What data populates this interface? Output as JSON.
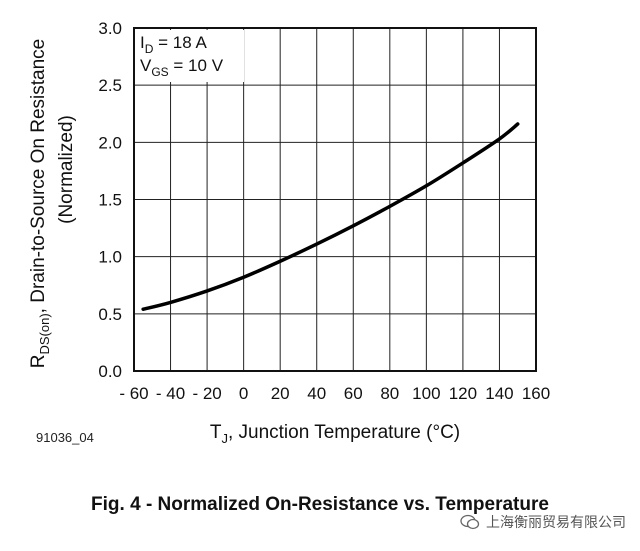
{
  "figure_id": "91036_04",
  "caption": "Fig. 4 - Normalized On-Resistance vs. Temperature",
  "watermark": "上海衡丽贸易有限公司",
  "annotation": {
    "id_label": "I",
    "id_sub": "D",
    "id_value": " = 18 A",
    "vgs_label": "V",
    "vgs_sub": "GS",
    "vgs_value": " = 10 V"
  },
  "chart_data": {
    "type": "line",
    "title": "",
    "xlabel_main": "T",
    "xlabel_sub": "J",
    "xlabel_rest": ", Junction Temperature (°C)",
    "ylabel_line1_main": "R",
    "ylabel_line1_sub": "DS(on)",
    "ylabel_line1_rest": ", Drain-to-Source On Resistance",
    "ylabel_line2": "(Normalized)",
    "xlim": [
      -60,
      160
    ],
    "ylim": [
      0,
      3.0
    ],
    "xticks": [
      -60,
      -40,
      -20,
      0,
      20,
      40,
      60,
      80,
      100,
      120,
      140,
      160
    ],
    "xtick_labels": [
      "- 60",
      "- 40",
      "- 20",
      "0",
      "20",
      "40",
      "60",
      "80",
      "100",
      "120",
      "140",
      "160"
    ],
    "yticks": [
      0,
      0.5,
      1.0,
      1.5,
      2.0,
      2.5,
      3.0
    ],
    "ytick_labels": [
      "0.0",
      "0.5",
      "1.0",
      "1.5",
      "2.0",
      "2.5",
      "3.0"
    ],
    "grid": true,
    "series": [
      {
        "color": "#000000",
        "x": [
          -55,
          -40,
          -20,
          0,
          20,
          40,
          60,
          80,
          100,
          120,
          140,
          150
        ],
        "y": [
          0.54,
          0.6,
          0.7,
          0.82,
          0.96,
          1.11,
          1.27,
          1.44,
          1.62,
          1.82,
          2.03,
          2.16
        ]
      }
    ]
  }
}
